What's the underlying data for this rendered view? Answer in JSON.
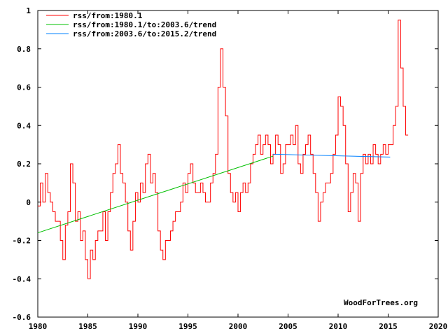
{
  "chart_data": {
    "type": "line",
    "title": "",
    "xlabel": "",
    "ylabel": "",
    "xlim": [
      1980,
      2020
    ],
    "ylim": [
      -0.6,
      1
    ],
    "x_ticks": [
      "1980",
      "1985",
      "1990",
      "1995",
      "2000",
      "2005",
      "2010",
      "2015",
      "2020"
    ],
    "y_ticks": [
      "-0.6",
      "-0.4",
      "-0.2",
      "0",
      "0.2",
      "0.4",
      "0.6",
      "0.8",
      "1"
    ],
    "grid": false,
    "legend_position": "top-left",
    "watermark": "WoodForTrees.org",
    "series": [
      {
        "name": "rss/from:1980.1",
        "color": "#ff0000",
        "x_start": 1980.0,
        "x_step": 0.25,
        "values": [
          -0.02,
          0.1,
          0.0,
          0.15,
          0.05,
          0.0,
          -0.05,
          -0.1,
          -0.1,
          -0.2,
          -0.3,
          -0.12,
          -0.05,
          0.2,
          0.1,
          -0.1,
          -0.05,
          -0.2,
          -0.15,
          -0.3,
          -0.4,
          -0.25,
          -0.3,
          -0.2,
          -0.15,
          -0.15,
          -0.05,
          -0.2,
          -0.05,
          0.05,
          0.15,
          0.2,
          0.3,
          0.15,
          0.1,
          0.0,
          -0.15,
          -0.25,
          -0.1,
          0.05,
          0.0,
          0.1,
          0.05,
          0.2,
          0.25,
          0.1,
          0.15,
          0.05,
          -0.15,
          -0.25,
          -0.3,
          -0.2,
          -0.2,
          -0.15,
          -0.1,
          -0.05,
          -0.05,
          0.0,
          0.1,
          0.05,
          0.15,
          0.2,
          0.1,
          0.05,
          0.05,
          0.1,
          0.05,
          0.0,
          0.0,
          0.1,
          0.15,
          0.25,
          0.6,
          0.8,
          0.6,
          0.45,
          0.15,
          0.05,
          0.0,
          0.05,
          -0.05,
          0.05,
          0.1,
          0.05,
          0.1,
          0.2,
          0.25,
          0.3,
          0.35,
          0.25,
          0.3,
          0.35,
          0.3,
          0.2,
          0.25,
          0.35,
          0.3,
          0.15,
          0.2,
          0.3,
          0.3,
          0.35,
          0.3,
          0.4,
          0.2,
          0.15,
          0.25,
          0.3,
          0.35,
          0.25,
          0.15,
          0.05,
          -0.1,
          0.0,
          0.05,
          0.1,
          0.1,
          0.15,
          0.25,
          0.35,
          0.55,
          0.5,
          0.4,
          0.2,
          -0.05,
          0.05,
          0.15,
          0.1,
          -0.1,
          0.15,
          0.25,
          0.2,
          0.25,
          0.2,
          0.3,
          0.25,
          0.2,
          0.25,
          0.3,
          0.25,
          0.3,
          0.3,
          0.4,
          0.5,
          0.95,
          0.7,
          0.5,
          0.35
        ]
      },
      {
        "name": "rss/from:1980.1/to:2003.6/trend",
        "color": "#00c000",
        "x": [
          1980.0,
          2003.5
        ],
        "values": [
          -0.16,
          0.24
        ]
      },
      {
        "name": "rss/from:2003.6/to:2015.2/trend",
        "color": "#0080ff",
        "x": [
          2003.5,
          2015.2
        ],
        "values": [
          0.25,
          0.235
        ]
      }
    ]
  }
}
